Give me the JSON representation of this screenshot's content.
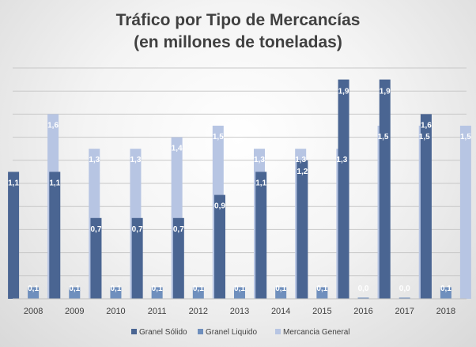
{
  "chart_data": {
    "type": "bar",
    "title": "Tráfico por Tipo de Mercancías",
    "subtitle": "(en millones de toneladas)",
    "categories": [
      "2008",
      "2009",
      "2010",
      "2011",
      "2012",
      "2013",
      "2014",
      "2015",
      "2016",
      "2017",
      "2018"
    ],
    "series": [
      {
        "name": "Granel Sólido",
        "color": "#4a6592",
        "values": [
          1.1,
          1.1,
          0.7,
          0.7,
          0.7,
          0.9,
          1.1,
          1.2,
          1.9,
          1.9,
          1.6
        ],
        "labels": [
          "1,1",
          "1,1",
          "0,7",
          "0,7",
          "0,7",
          "0,9",
          "1,1",
          "1,2",
          "1,9",
          "1,9",
          "1,6"
        ]
      },
      {
        "name": "Granel Liquido",
        "color": "#6f8fbd",
        "values": [
          0.1,
          0.1,
          0.1,
          0.1,
          0.1,
          0.1,
          0.1,
          0.1,
          0.0,
          0.0,
          0.1
        ],
        "labels": [
          "0,1",
          "0,1",
          "0,1",
          "0,1",
          "0,1",
          "0,1",
          "0,1",
          "0,1",
          "0,0",
          "0,0",
          "0,1"
        ]
      },
      {
        "name": "Mercancia General",
        "color": "#b7c5e3",
        "values": [
          1.6,
          1.3,
          1.3,
          1.4,
          1.5,
          1.3,
          1.3,
          1.3,
          1.5,
          1.5,
          1.5
        ],
        "labels": [
          "1,6",
          "1,3",
          "1,3",
          "1,4",
          "1,5",
          "1,3",
          "1,3",
          "1,3",
          "1,5",
          "1,5",
          "1,5"
        ]
      }
    ],
    "ylim": [
      0,
      2.0
    ],
    "grid": true,
    "legend_position": "bottom"
  }
}
